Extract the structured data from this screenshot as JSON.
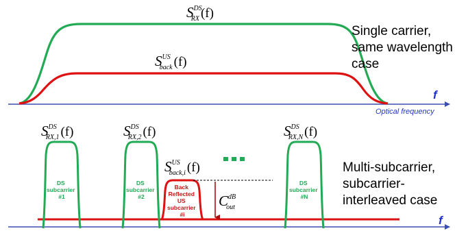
{
  "colors": {
    "axis": "#3b4fb0",
    "downstream": "#22aa55",
    "upstream": "#dd1111",
    "axis_label": "#2233cc"
  },
  "top": {
    "ds_label": {
      "base": "S",
      "sup": "DS",
      "sub": "RX",
      "arg": "(f)"
    },
    "us_label": {
      "base": "S",
      "sup": "US",
      "sub": "back",
      "arg": "(f)"
    },
    "side_text": [
      "Single carrier,",
      "same wavelength",
      "case"
    ],
    "axis_symbol": "f",
    "axis_label": "Optical frequency"
  },
  "bottom": {
    "carriers": [
      {
        "label": {
          "base": "S",
          "sup": "DS",
          "sub": "RX,1",
          "arg": "(f)"
        },
        "text": [
          "DS",
          "subcarrier",
          "#1"
        ]
      },
      {
        "label": {
          "base": "S",
          "sup": "DS",
          "sub": "RX,2",
          "arg": "(f)"
        },
        "text": [
          "DS",
          "subcarrier",
          "#2"
        ]
      },
      {
        "label": {
          "base": "S",
          "sup": "DS",
          "sub": "RX,N",
          "arg": "(f)"
        },
        "text": [
          "DS",
          "subcarrier",
          "#N"
        ]
      }
    ],
    "us_carrier": {
      "label": {
        "base": "S",
        "sup": "US",
        "sub": "back,i",
        "arg": "(f)"
      },
      "text": [
        "Back",
        "Reflected",
        "US",
        "subcarrier",
        "#i"
      ]
    },
    "cout_label": {
      "base": "C",
      "sup": "dB",
      "sub": "out"
    },
    "side_text": [
      "Multi-subcarrier,",
      "subcarrier-",
      "interleaved case"
    ],
    "axis_symbol": "f"
  }
}
